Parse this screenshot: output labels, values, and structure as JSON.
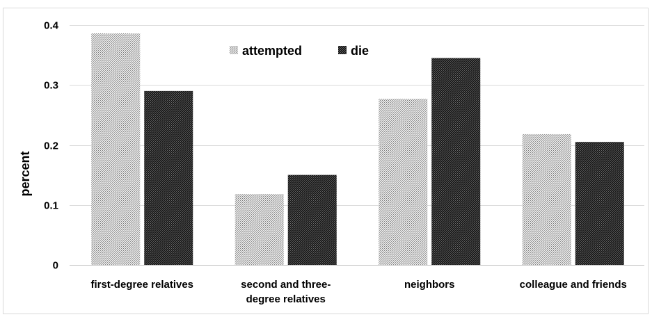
{
  "chart_data": {
    "type": "bar",
    "title": "",
    "xlabel": "",
    "ylabel": "percent",
    "ylim": [
      0,
      0.4
    ],
    "yticks": [
      "0",
      "0.1",
      "0.2",
      "0.3",
      "0.4"
    ],
    "categories": [
      [
        "first-degree relatives"
      ],
      [
        "second and three-",
        "degree relatives"
      ],
      [
        "neighbors"
      ],
      [
        "colleague and friends"
      ]
    ],
    "series": [
      {
        "name": "attempted",
        "values": [
          0.386,
          0.118,
          0.277,
          0.218
        ],
        "color": "#b3b3b3"
      },
      {
        "name": "die",
        "values": [
          0.29,
          0.15,
          0.345,
          0.205
        ],
        "color": "#2b2b2b"
      }
    ],
    "grid": true,
    "legend_position": "top"
  }
}
